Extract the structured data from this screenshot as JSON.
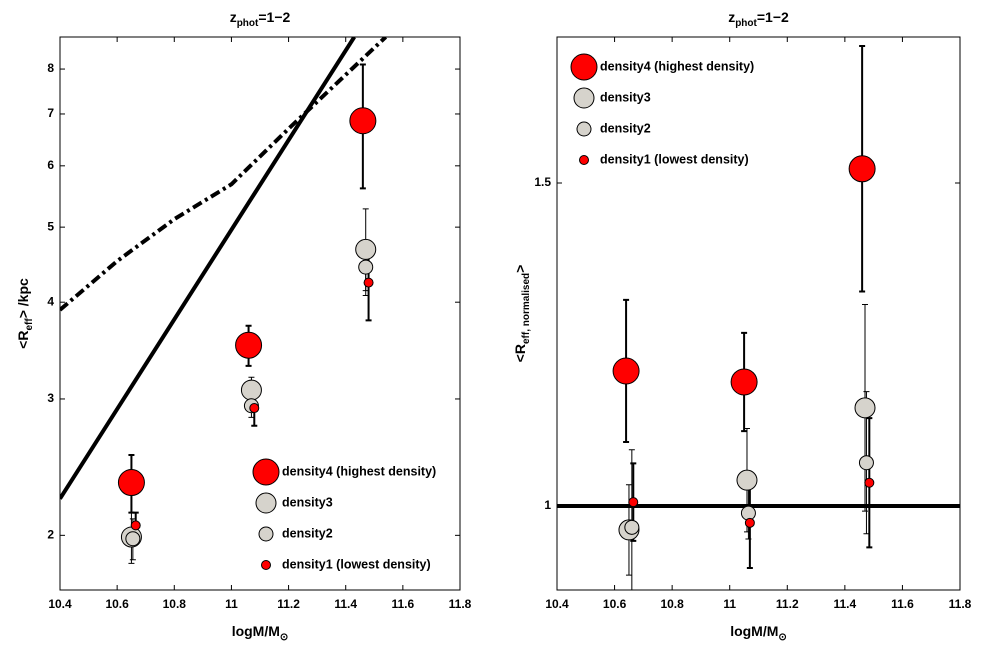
{
  "chart_data": [
    {
      "type": "scatter",
      "title": [
        "z",
        "phot",
        "=1−2"
      ],
      "x_label": [
        "logM/M",
        "⊙"
      ],
      "y_label": [
        "<R",
        "eff",
        "> /kpc"
      ],
      "log_y": true,
      "legend": "lower right",
      "xlim": [
        10.4,
        11.8
      ],
      "xticks": [
        10.4,
        10.6,
        10.8,
        11,
        11.2,
        11.4,
        11.6,
        11.8
      ],
      "ylim": [
        1.7,
        8.8
      ],
      "yticks": [
        2,
        3,
        4,
        5,
        6,
        7,
        8
      ],
      "series": [
        {
          "name": "density4 (highest density)",
          "color": "#ff0000",
          "x": [
            10.65,
            11.06,
            11.46
          ],
          "values": [
            2.34,
            3.52,
            6.86
          ],
          "errors": [
            0.2,
            0.21,
            1.25
          ]
        },
        {
          "name": "density3",
          "color": "#d6d3cc",
          "x": [
            10.65,
            11.07,
            11.47
          ],
          "values": [
            1.99,
            3.08,
            4.68
          ],
          "errors": [
            0.15,
            0.12,
            0.6
          ]
        },
        {
          "name": "density2",
          "color": "#d6d3cc",
          "x": [
            10.655,
            11.07,
            11.47
          ],
          "values": [
            1.98,
            2.94,
            4.44
          ],
          "errors": [
            0.12,
            0.1,
            0.3
          ]
        },
        {
          "name": "density1 (lowest density)",
          "color": "#ff0000",
          "x": [
            10.665,
            11.08,
            11.48
          ],
          "values": [
            2.06,
            2.92,
            4.24
          ],
          "errors": [
            0.08,
            0.15,
            0.45
          ]
        }
      ],
      "lines": [
        {
          "style": "solid",
          "x": [
            10.4,
            11.43
          ],
          "values": [
            2.23,
            8.8
          ]
        },
        {
          "style": "dashdot",
          "x": [
            10.4,
            10.6,
            10.8,
            11.0,
            11.2,
            11.54
          ],
          "values": [
            3.91,
            4.52,
            5.12,
            5.68,
            6.7,
            8.8
          ]
        }
      ]
    },
    {
      "type": "scatter",
      "title": [
        "z",
        "phot",
        "=1−2"
      ],
      "x_label": [
        "logM/M",
        "⊙"
      ],
      "y_label": [
        "<R",
        "eff, normalised",
        ">"
      ],
      "log_y": false,
      "legend": "upper left",
      "xlim": [
        10.4,
        11.8
      ],
      "xticks": [
        10.4,
        10.6,
        10.8,
        11,
        11.2,
        11.4,
        11.6,
        11.8
      ],
      "ylim": [
        0.87,
        1.726
      ],
      "yticks": [
        1,
        1.5
      ],
      "series": [
        {
          "name": "density4 (highest density)",
          "color": "#ff0000",
          "x": [
            10.64,
            11.05,
            11.46
          ],
          "values": [
            1.209,
            1.192,
            1.522
          ],
          "errors": [
            0.11,
            0.076,
            0.19
          ]
        },
        {
          "name": "density3",
          "color": "#d6d3cc",
          "x": [
            10.65,
            11.06,
            11.47
          ],
          "values": [
            0.963,
            1.04,
            1.152
          ],
          "errors": [
            0.07,
            0.08,
            0.16
          ]
        },
        {
          "name": "density2",
          "color": "#d6d3cc",
          "x": [
            10.66,
            11.065,
            11.475
          ],
          "values": [
            0.967,
            0.989,
            1.067
          ],
          "errors": [
            0.12,
            0.04,
            0.11
          ]
        },
        {
          "name": "density1 (lowest density)",
          "color": "#ff0000",
          "x": [
            10.665,
            11.07,
            11.485
          ],
          "values": [
            1.006,
            0.974,
            1.036
          ],
          "errors": [
            0.06,
            0.07,
            0.1
          ]
        }
      ],
      "lines": [
        {
          "style": "solid",
          "x": [
            10.4,
            11.8
          ],
          "values": [
            1,
            1
          ]
        }
      ]
    }
  ]
}
